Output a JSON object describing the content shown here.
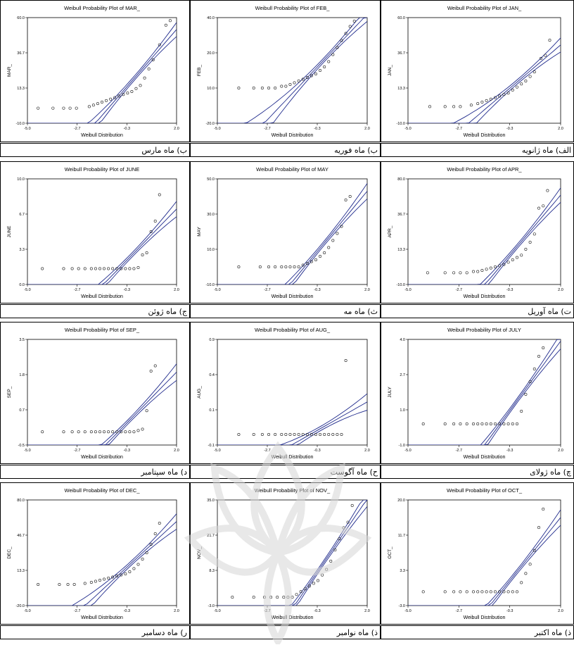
{
  "xlabel": "Weibull Distribution",
  "x_ticks": [
    "-5.0",
    "-2.7",
    "-0.3",
    "2.0"
  ],
  "chart_data": [
    {
      "type": "scatter",
      "title": "Weibull Probability Plot of MAR_",
      "ylabel": "MAR_",
      "xlabel": "Weibull Distribution",
      "xlim": [
        -5,
        2
      ],
      "ylim": [
        -10,
        60
      ],
      "y_ticks": [
        "-10.0",
        "13.3",
        "36.7",
        "60.0"
      ],
      "x": [
        -4.5,
        -3.8,
        -3.3,
        -3.0,
        -2.7,
        -2.1,
        -1.9,
        -1.7,
        -1.5,
        -1.3,
        -1.1,
        -0.9,
        -0.7,
        -0.5,
        -0.3,
        -0.1,
        0.1,
        0.3,
        0.5,
        0.7,
        0.9,
        1.2,
        1.5,
        1.7
      ],
      "y": [
        0,
        0,
        0,
        0,
        0,
        1,
        2,
        3,
        4,
        5,
        6,
        7,
        8,
        9,
        10,
        11,
        13,
        15,
        20,
        26,
        32,
        42,
        55,
        58
      ]
    },
    {
      "type": "scatter",
      "title": "Weibull Probability Plot of FEB_",
      "ylabel": "FEB_",
      "xlabel": "Weibull Distribution",
      "xlim": [
        -5,
        2
      ],
      "ylim": [
        -20,
        40
      ],
      "y_ticks": [
        "-20.0",
        "10.0",
        "20.0",
        "40.0"
      ],
      "x": [
        -4.0,
        -3.3,
        -2.9,
        -2.6,
        -2.3,
        -2.0,
        -1.8,
        -1.6,
        -1.4,
        -1.2,
        -1.0,
        -0.8,
        -0.6,
        -0.4,
        -0.2,
        0,
        0.2,
        0.4,
        0.6,
        0.8,
        1.0,
        1.2,
        1.4
      ],
      "y": [
        0,
        0,
        0,
        0,
        0,
        1,
        1,
        2,
        3,
        4,
        5,
        6,
        7,
        8,
        10,
        12,
        15,
        19,
        23,
        27,
        31,
        35,
        38
      ]
    },
    {
      "type": "scatter",
      "title": "Weibull Probability Plot of JAN_",
      "ylabel": "JAN_",
      "xlabel": "Weibull Distribution",
      "xlim": [
        -5,
        2
      ],
      "ylim": [
        -10,
        60
      ],
      "y_ticks": [
        "-10.0",
        "13.3",
        "36.7",
        "60.0"
      ],
      "x": [
        -4.0,
        -3.3,
        -2.9,
        -2.6,
        -2.1,
        -1.8,
        -1.6,
        -1.4,
        -1.2,
        -1.0,
        -0.8,
        -0.6,
        -0.4,
        -0.2,
        0,
        0.2,
        0.4,
        0.6,
        0.8,
        1.1,
        1.3,
        1.5
      ],
      "y": [
        1,
        1,
        1,
        1,
        2,
        3,
        4,
        5,
        6,
        7,
        8,
        9,
        10,
        12,
        14,
        16,
        18,
        21,
        24,
        33,
        35,
        45
      ]
    },
    {
      "type": "scatter",
      "title": "Weibull Probability Plot of JUNE",
      "ylabel": "JUNE",
      "xlabel": "Weibull Distribution",
      "xlim": [
        -5,
        2
      ],
      "ylim": [
        0,
        10
      ],
      "y_ticks": [
        "0.0",
        "3.3",
        "6.7",
        "10.0"
      ],
      "x": [
        -4.3,
        -3.3,
        -2.9,
        -2.6,
        -2.3,
        -2.0,
        -1.8,
        -1.6,
        -1.4,
        -1.2,
        -1.0,
        -0.8,
        -0.6,
        -0.4,
        -0.2,
        0.0,
        0.2,
        0.4,
        0.6,
        0.8,
        1.0,
        1.2
      ],
      "y": [
        1.5,
        1.5,
        1.5,
        1.5,
        1.5,
        1.5,
        1.5,
        1.5,
        1.5,
        1.5,
        1.5,
        1.5,
        1.5,
        1.5,
        1.5,
        1.5,
        1.6,
        2.8,
        3.0,
        5.0,
        6.0,
        8.5
      ]
    },
    {
      "type": "scatter",
      "title": "Weibull Probability Plot of MAY",
      "ylabel": "MAY",
      "xlabel": "Weibull Distribution",
      "xlim": [
        -5,
        2
      ],
      "ylim": [
        -10,
        50
      ],
      "y_ticks": [
        "-10.0",
        "10.0",
        "30.0",
        "50.0"
      ],
      "x": [
        -4.0,
        -3.0,
        -2.6,
        -2.3,
        -2.0,
        -1.8,
        -1.6,
        -1.4,
        -1.2,
        -1.0,
        -0.8,
        -0.6,
        -0.4,
        -0.2,
        0.0,
        0.2,
        0.4,
        0.6,
        0.8,
        1.0,
        1.2
      ],
      "y": [
        0,
        0,
        0,
        0,
        0,
        0,
        0,
        0,
        0,
        1,
        2,
        3,
        4,
        6,
        8,
        11,
        15,
        19,
        23,
        38,
        40
      ]
    },
    {
      "type": "scatter",
      "title": "Weibull Probability Plot of APR_",
      "ylabel": "APR_",
      "xlabel": "Weibull Distribution",
      "xlim": [
        -5,
        2
      ],
      "ylim": [
        -10,
        80
      ],
      "y_ticks": [
        "-10.0",
        "13.3",
        "36.7",
        "80.0"
      ],
      "x": [
        -4.1,
        -3.3,
        -2.9,
        -2.6,
        -2.3,
        -2.0,
        -1.8,
        -1.6,
        -1.4,
        -1.2,
        -1.0,
        -0.8,
        -0.6,
        -0.4,
        -0.2,
        0.0,
        0.2,
        0.4,
        0.6,
        0.8,
        1.0,
        1.2,
        1.4
      ],
      "y": [
        0,
        0,
        0,
        0,
        0,
        1,
        1,
        2,
        3,
        4,
        5,
        6,
        7,
        9,
        11,
        13,
        15,
        20,
        26,
        33,
        55,
        57,
        70
      ]
    },
    {
      "type": "scatter",
      "title": "Weibull Probability Plot of SEP_",
      "ylabel": "SEP_",
      "xlabel": "Weibull Distribution",
      "xlim": [
        -5,
        2
      ],
      "ylim": [
        -0.5,
        3.5
      ],
      "y_ticks": [
        "-0.5",
        "0.7",
        "1.8",
        "3.5"
      ],
      "x": [
        -4.3,
        -3.3,
        -2.9,
        -2.6,
        -2.3,
        -2.0,
        -1.8,
        -1.6,
        -1.4,
        -1.2,
        -1.0,
        -0.8,
        -0.6,
        -0.4,
        -0.2,
        0.0,
        0.2,
        0.4,
        0.6,
        0.8,
        1.0
      ],
      "y": [
        0,
        0,
        0,
        0,
        0,
        0,
        0,
        0,
        0,
        0,
        0,
        0,
        0,
        0,
        0,
        0,
        0.05,
        0.1,
        0.8,
        2.3,
        2.5
      ]
    },
    {
      "type": "scatter",
      "title": "Weibull Probability Plot of AUG_",
      "ylabel": "AUG_",
      "xlabel": "Weibull Distribution",
      "xlim": [
        -5,
        2
      ],
      "ylim": [
        -0.1,
        0.9
      ],
      "y_ticks": [
        "-0.1",
        "0.1",
        "0.4",
        "0.9"
      ],
      "x": [
        -4.0,
        -3.3,
        -2.9,
        -2.6,
        -2.3,
        -2.0,
        -1.8,
        -1.6,
        -1.4,
        -1.2,
        -1.0,
        -0.8,
        -0.6,
        -0.4,
        -0.2,
        0.0,
        0.2,
        0.4,
        0.6,
        0.8,
        1.0
      ],
      "y": [
        0,
        0,
        0,
        0,
        0,
        0,
        0,
        0,
        0,
        0,
        0,
        0,
        0,
        0,
        0,
        0,
        0,
        0,
        0,
        0,
        0.7
      ]
    },
    {
      "type": "scatter",
      "title": "Weibull Probability Plot of JULY",
      "ylabel": "JULY",
      "xlabel": "Weibull Distribution",
      "xlim": [
        -5,
        2
      ],
      "ylim": [
        -1,
        4
      ],
      "y_ticks": [
        "-1.0",
        "1.0",
        "2.7",
        "4.0"
      ],
      "x": [
        -4.3,
        -3.3,
        -2.9,
        -2.6,
        -2.3,
        -2.0,
        -1.8,
        -1.6,
        -1.4,
        -1.2,
        -1.0,
        -0.8,
        -0.6,
        -0.4,
        -0.2,
        0.0,
        0.2,
        0.4,
        0.6,
        0.8,
        1.0,
        1.2
      ],
      "y": [
        0,
        0,
        0,
        0,
        0,
        0,
        0,
        0,
        0,
        0,
        0,
        0,
        0,
        0,
        0,
        0,
        0.6,
        1.4,
        2.0,
        2.6,
        3.2,
        3.6
      ]
    },
    {
      "type": "scatter",
      "title": "Weibull Probability Plot of DEC_",
      "ylabel": "DEC_",
      "xlabel": "Weibull Distribution",
      "xlim": [
        -5,
        2
      ],
      "ylim": [
        -20,
        80
      ],
      "y_ticks": [
        "-20.0",
        "13.3",
        "46.7",
        "80.0"
      ],
      "x": [
        -4.5,
        -3.5,
        -3.1,
        -2.8,
        -2.3,
        -2.0,
        -1.8,
        -1.6,
        -1.4,
        -1.2,
        -1.0,
        -0.8,
        -0.6,
        -0.4,
        -0.2,
        0.0,
        0.2,
        0.4,
        0.6,
        0.8,
        1.0,
        1.2
      ],
      "y": [
        0,
        0,
        0,
        0,
        1,
        2,
        3,
        4,
        5,
        6,
        7,
        8,
        9,
        10,
        12,
        15,
        19,
        24,
        30,
        38,
        48,
        58
      ]
    },
    {
      "type": "scatter",
      "title": "Weibull Probability Plot of NOV_",
      "ylabel": "NOV_",
      "xlabel": "Weibull Distribution",
      "xlim": [
        -5,
        2
      ],
      "ylim": [
        -3,
        35
      ],
      "y_ticks": [
        "-3.0",
        "8.3",
        "21.7",
        "35.0"
      ],
      "x": [
        -4.3,
        -3.3,
        -2.8,
        -2.5,
        -2.2,
        -1.9,
        -1.7,
        -1.5,
        -1.3,
        -1.1,
        -0.9,
        -0.7,
        -0.5,
        -0.3,
        -0.1,
        0.1,
        0.3,
        0.5,
        0.7,
        0.9,
        1.1,
        1.3
      ],
      "y": [
        0,
        0,
        0,
        0,
        0,
        0,
        0,
        0,
        1,
        2,
        3,
        4,
        5,
        6,
        8,
        10,
        13,
        17,
        21,
        25,
        27,
        33
      ]
    },
    {
      "type": "scatter",
      "title": "Weibull Probability Plot of OCT_",
      "ylabel": "OCT_",
      "xlabel": "Weibull Distribution",
      "xlim": [
        -5,
        2
      ],
      "ylim": [
        -3,
        20
      ],
      "y_ticks": [
        "-3.0",
        "3.3",
        "11.7",
        "20.0"
      ],
      "x": [
        -4.3,
        -3.3,
        -2.9,
        -2.6,
        -2.3,
        -2.0,
        -1.8,
        -1.6,
        -1.4,
        -1.2,
        -1.0,
        -0.8,
        -0.6,
        -0.4,
        -0.2,
        0.0,
        0.2,
        0.4,
        0.6,
        0.8,
        1.0,
        1.2
      ],
      "y": [
        0,
        0,
        0,
        0,
        0,
        0,
        0,
        0,
        0,
        0,
        0,
        0,
        0,
        0,
        0,
        0,
        2,
        4,
        6,
        9,
        14,
        18
      ]
    }
  ],
  "captions": [
    "ب) ماه مارس",
    "ب) ماه فوریه",
    "الف) ماه ژانویه",
    "ج) ماه ژوئن",
    "ث) ماه مه",
    "ت) ماه آوریل",
    "د) ماه سپتامبر",
    "ح) ماه آگوست",
    "چ) ماه ژولای",
    "ر) ماه دسامبر",
    "ذ) ماه نوامبر",
    "ذ) ماه اکتبر"
  ],
  "colors": {
    "line": "#1f2a8c",
    "point": "#1a1a1a",
    "frame": "#000000"
  }
}
